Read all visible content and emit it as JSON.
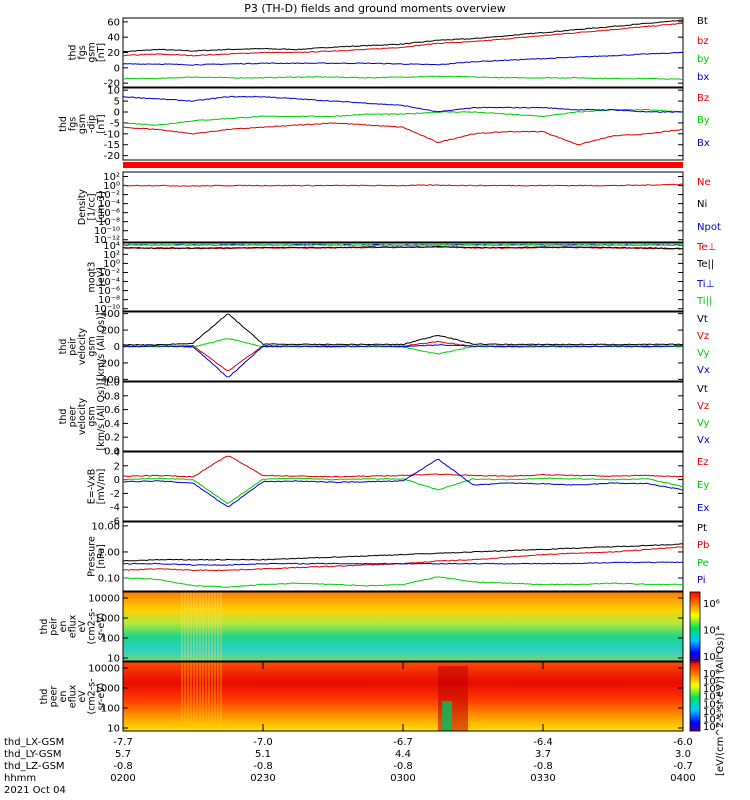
{
  "title": "P3 (TH-D) fields and ground moments overview",
  "colors": {
    "black": "#000000",
    "red": "#dd0000",
    "green": "#00cc00",
    "blue": "#0000cc"
  },
  "chart_data": [
    {
      "type": "line",
      "ylabel": [
        "thd",
        "fgs",
        "gsm",
        "[nT]"
      ],
      "ylim": [
        -25,
        65
      ],
      "yticks": [
        "60",
        "40",
        "20",
        "0",
        "-20"
      ],
      "ytick_values": [
        60,
        40,
        20,
        0,
        -20
      ],
      "series": [
        {
          "name": "Bt",
          "color": "#000000",
          "values": [
            21,
            24,
            22,
            24,
            25,
            24,
            27,
            29,
            31,
            36,
            38,
            42,
            46,
            50,
            54,
            58,
            62
          ]
        },
        {
          "name": "bz",
          "color": "#dd0000",
          "values": [
            16,
            18,
            16,
            18,
            20,
            20,
            22,
            24,
            27,
            32,
            34,
            38,
            42,
            46,
            50,
            54,
            58
          ]
        },
        {
          "name": "by",
          "color": "#00cc00",
          "values": [
            -14,
            -14,
            -12,
            -13,
            -13,
            -12,
            -12,
            -13,
            -12,
            -11,
            -12,
            -13,
            -13,
            -13,
            -14,
            -14,
            -15
          ]
        },
        {
          "name": "bx",
          "color": "#0000cc",
          "values": [
            5,
            5,
            4,
            5,
            6,
            6,
            6,
            6,
            5,
            4,
            8,
            10,
            12,
            14,
            16,
            18,
            20
          ]
        }
      ]
    },
    {
      "type": "line",
      "ylabel": [
        "thd",
        "fgs",
        "gsm",
        "-dip",
        "[nT]"
      ],
      "ylim": [
        -22,
        11
      ],
      "yticks": [
        "10",
        "5",
        "0",
        "-5",
        "-10",
        "-15",
        "-20"
      ],
      "ytick_values": [
        10,
        5,
        0,
        -5,
        -10,
        -15,
        -20
      ],
      "series": [
        {
          "name": "Bz",
          "color": "#dd0000",
          "values": [
            -7,
            -8,
            -10,
            -8,
            -7,
            -6,
            -5,
            -6,
            -7,
            -14,
            -10,
            -9,
            -9,
            -15,
            -11,
            -10,
            -8
          ]
        },
        {
          "name": "By",
          "color": "#00cc00",
          "values": [
            -5,
            -6,
            -4,
            -3,
            -2,
            -2,
            -2,
            -1,
            -1,
            0,
            0,
            -1,
            -2,
            0,
            1,
            1,
            0
          ]
        },
        {
          "name": "Bx",
          "color": "#0000cc",
          "values": [
            7,
            6,
            5,
            7,
            7,
            6,
            5,
            4,
            3,
            0,
            2,
            2,
            2,
            1,
            1,
            0,
            0
          ]
        }
      ]
    },
    {
      "type": "line",
      "ylabel": [
        "Density",
        "[1/cc]",
        "[cm-3]"
      ],
      "ylim_log10": [
        -12.5,
        3
      ],
      "yticks": [
        "10²",
        "10⁰",
        "10⁻²",
        "10⁻⁴",
        "10⁻⁶",
        "10⁻⁸",
        "10⁻¹⁰",
        "10⁻¹²"
      ],
      "ytick_values": [
        2,
        0,
        -2,
        -4,
        -6,
        -8,
        -10,
        -12
      ],
      "series": [
        {
          "name": "Ne",
          "color": "#dd0000",
          "values_log10": [
            0,
            0,
            -0.1,
            0,
            0,
            0,
            0,
            0,
            0,
            0.1,
            0,
            0,
            0,
            0,
            0,
            0.1,
            0.3
          ]
        },
        {
          "name": "Ni",
          "color": "#000000",
          "values_log10": []
        },
        {
          "name": "Npot",
          "color": "#0000cc",
          "values_log10": []
        }
      ]
    },
    {
      "type": "line",
      "ylabel": [
        "moqt3",
        "[eV]"
      ],
      "ylim_log10": [
        -10.5,
        4.5
      ],
      "yticks": [
        "10⁴",
        "10²",
        "10⁰",
        "10⁻²",
        "10⁻⁴",
        "10⁻⁶",
        "10⁻⁸",
        "10⁻¹⁰"
      ],
      "ytick_values": [
        4,
        2,
        0,
        -2,
        -4,
        -6,
        -8,
        -10
      ],
      "series": [
        {
          "name": "Te⊥",
          "color": "#dd0000",
          "values_log10": [
            3.4,
            3.3,
            3.3,
            3.3,
            3.4,
            3.4,
            3.4,
            3.5,
            3.5,
            3.6,
            3.4,
            3.4,
            3.5,
            3.5,
            3.4,
            3.3,
            3.2
          ]
        },
        {
          "name": "Te||",
          "color": "#000000",
          "values_log10": [
            3.5,
            3.4,
            3.4,
            3.4,
            3.5,
            3.5,
            3.5,
            3.6,
            3.6,
            3.7,
            3.5,
            3.5,
            3.6,
            3.6,
            3.5,
            3.4,
            3.3
          ]
        },
        {
          "name": "Ti⊥",
          "color": "#0000cc",
          "values_log10": [
            4.1,
            4.1,
            4.1,
            4.1,
            4.1,
            4.1,
            4.1,
            4.1,
            4.1,
            4.1,
            4.1,
            4.1,
            4.1,
            4.1,
            4.1,
            4.1,
            4.1
          ]
        },
        {
          "name": "Ti||",
          "color": "#00cc00",
          "values_log10": [
            4.05,
            4.05,
            4.05,
            4.05,
            4.05,
            4.05,
            4.05,
            4.05,
            4.05,
            4.05,
            4.05,
            4.05,
            4.05,
            4.05,
            4.05,
            4.05,
            4.05
          ]
        }
      ]
    },
    {
      "type": "line",
      "ylabel": [
        "thd",
        "peir",
        "velocity",
        "gsm",
        "[km/s (All Qs)]"
      ],
      "ylim": [
        -420,
        420
      ],
      "yticks": [
        "400",
        "200",
        "0",
        "-200",
        "-400"
      ],
      "ytick_values": [
        400,
        200,
        0,
        -200,
        -400
      ],
      "series": [
        {
          "name": "Vt",
          "color": "#000000",
          "values": [
            20,
            20,
            40,
            400,
            30,
            25,
            25,
            25,
            25,
            140,
            30,
            25,
            25,
            25,
            25,
            25,
            25
          ]
        },
        {
          "name": "Vz",
          "color": "#dd0000",
          "values": [
            5,
            0,
            10,
            -300,
            10,
            0,
            5,
            0,
            5,
            60,
            0,
            5,
            0,
            5,
            0,
            5,
            0
          ]
        },
        {
          "name": "Vy",
          "color": "#00cc00",
          "values": [
            -5,
            0,
            -10,
            100,
            -5,
            0,
            -5,
            0,
            -5,
            -90,
            0,
            -5,
            0,
            -5,
            0,
            -5,
            0
          ]
        },
        {
          "name": "Vx",
          "color": "#0000cc",
          "values": [
            0,
            5,
            0,
            -380,
            0,
            5,
            0,
            5,
            0,
            20,
            5,
            0,
            5,
            0,
            5,
            0,
            5
          ]
        }
      ]
    },
    {
      "type": "line",
      "ylabel": [
        "thd",
        "peer",
        "velocity",
        "gsm",
        "[km/s (All Qs)]"
      ],
      "ylim": [
        0,
        1
      ],
      "yticks": [
        "1.0",
        "0.8",
        "0.6",
        "0.4",
        "0.2",
        "0.0"
      ],
      "ytick_values": [
        1,
        0.8,
        0.6,
        0.4,
        0.2,
        0
      ],
      "series": [
        {
          "name": "Vt",
          "color": "#000000",
          "values": []
        },
        {
          "name": "Vz",
          "color": "#dd0000",
          "values": []
        },
        {
          "name": "Vy",
          "color": "#00cc00",
          "values": []
        },
        {
          "name": "Vx",
          "color": "#0000cc",
          "values": []
        }
      ]
    },
    {
      "type": "line",
      "ylabel": [
        "E=-VxB",
        "[mV/m]"
      ],
      "ylim": [
        -6,
        4
      ],
      "yticks": [
        "4",
        "2",
        "0",
        "-2",
        "-4",
        "-6"
      ],
      "ytick_values": [
        4,
        2,
        0,
        -2,
        -4,
        -6
      ],
      "series": [
        {
          "name": "Ez",
          "color": "#dd0000",
          "values": [
            0.5,
            0.6,
            0.4,
            3.5,
            0.6,
            0.5,
            0.4,
            0.5,
            0.6,
            0.8,
            0.6,
            0.5,
            0.7,
            0.6,
            0.5,
            0.6,
            0.4
          ]
        },
        {
          "name": "Ey",
          "color": "#00cc00",
          "values": [
            0,
            0.2,
            0,
            -3.5,
            0.1,
            0.2,
            0,
            0.1,
            0.1,
            -1.5,
            0.1,
            0,
            0.2,
            0.1,
            0,
            0.1,
            -1
          ]
        },
        {
          "name": "Ex",
          "color": "#0000cc",
          "values": [
            -0.3,
            -0.2,
            -0.5,
            -4,
            -0.3,
            -0.2,
            -0.4,
            -0.3,
            -0.2,
            3,
            -0.8,
            -0.5,
            -0.6,
            -0.8,
            -0.5,
            -0.6,
            -1.5
          ]
        }
      ]
    },
    {
      "type": "line",
      "ylabel": [
        "Pressure",
        "[nPa]"
      ],
      "ylim_log10": [
        -1.5,
        1.15
      ],
      "yticks": [
        "10.00",
        "1.00",
        "0.10"
      ],
      "ytick_values": [
        1,
        0,
        -1
      ],
      "series": [
        {
          "name": "Pt",
          "color": "#000000",
          "values_log10": [
            -0.35,
            -0.3,
            -0.3,
            -0.3,
            -0.3,
            -0.25,
            -0.2,
            -0.15,
            -0.1,
            -0.05,
            0,
            0.05,
            0.1,
            0.15,
            0.2,
            0.25,
            0.3
          ]
        },
        {
          "name": "Pb",
          "color": "#dd0000",
          "values_log10": [
            -0.7,
            -0.65,
            -0.7,
            -0.7,
            -0.65,
            -0.6,
            -0.55,
            -0.5,
            -0.45,
            -0.35,
            -0.3,
            -0.2,
            -0.1,
            -0.05,
            0,
            0.1,
            0.2
          ]
        },
        {
          "name": "Pe",
          "color": "#00cc00",
          "values_log10": [
            -1.0,
            -1.05,
            -1.3,
            -1.35,
            -1.25,
            -1.2,
            -1.25,
            -1.3,
            -1.25,
            -0.95,
            -1.15,
            -1.2,
            -1.25,
            -1.25,
            -1.2,
            -1.25,
            -1.25
          ]
        },
        {
          "name": "Pi",
          "color": "#0000cc",
          "values_log10": [
            -0.45,
            -0.45,
            -0.5,
            -0.5,
            -0.45,
            -0.45,
            -0.45,
            -0.45,
            -0.45,
            -0.45,
            -0.45,
            -0.45,
            -0.45,
            -0.45,
            -0.4,
            -0.4,
            -0.4
          ]
        }
      ]
    },
    {
      "type": "heatmap",
      "ylabel": [
        "thd",
        "peir",
        "en",
        "eflux",
        "eV",
        "(cm2-s-",
        "sr-eV)"
      ],
      "ylim_log10": [
        0.85,
        4.3
      ],
      "yticks": [
        "10000",
        "1000",
        "100",
        "10"
      ],
      "ytick_values": [
        4,
        3,
        2,
        1
      ],
      "colorbar_ticks": [
        "10⁶",
        "10⁴",
        "10²"
      ]
    },
    {
      "type": "heatmap",
      "ylabel": [
        "thd",
        "peer",
        "en",
        "eflux",
        "eV",
        "(cm2-s-",
        "sr-eV)"
      ],
      "ylim_log10": [
        0.85,
        4.3
      ],
      "yticks": [
        "10000",
        "1000",
        "100",
        "10"
      ],
      "ytick_values": [
        4,
        3,
        2,
        1
      ],
      "colorbar_ticks": [
        "10⁸",
        "10⁷",
        "10⁶",
        "10⁵",
        "10⁴",
        "10³",
        "10²",
        "10¹"
      ]
    }
  ],
  "colorbar_unit_label": "[eV/(cm^2-s-sr-eV)] (All Qs)]",
  "footer": {
    "row_labels": [
      "thd_LX-GSM",
      "thd_LY-GSM",
      "thd_LZ-GSM",
      "hhmm",
      "2021 Oct 04"
    ],
    "columns": [
      [
        "-7.7",
        "5.7",
        "-0.8",
        "0200"
      ],
      [
        "-7.0",
        "5.1",
        "-0.8",
        "0230"
      ],
      [
        "-6.7",
        "4.4",
        "-0.8",
        "0300"
      ],
      [
        "-6.4",
        "3.7",
        "-0.8",
        "0330"
      ],
      [
        "-6.0",
        "3.0",
        "-0.7",
        "0400"
      ]
    ]
  }
}
